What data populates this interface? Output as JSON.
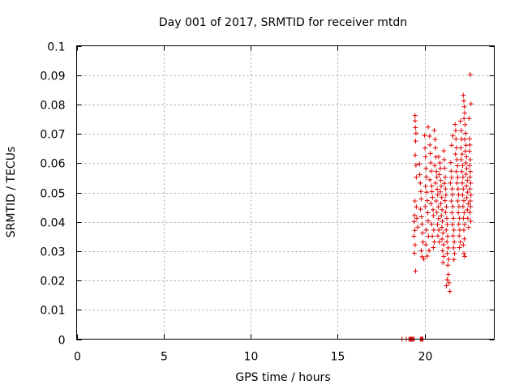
{
  "chart_data": {
    "type": "scatter",
    "title": "Day 001 of 2017, SRMTID for receiver mtdn",
    "xlabel": "GPS time / hours",
    "ylabel": "SRMTID / TECUs",
    "xlim": [
      0,
      24
    ],
    "ylim": [
      0,
      0.1
    ],
    "xticks": [
      0,
      5,
      10,
      15,
      20
    ],
    "xtick_labels": [
      "0",
      "5",
      "10",
      "15",
      "20"
    ],
    "yticks": [
      0,
      0.01,
      0.02,
      0.03,
      0.04,
      0.05,
      0.06,
      0.07,
      0.08,
      0.09,
      0.1
    ],
    "ytick_labels": [
      "0",
      "0.01",
      "0.02",
      "0.03",
      "0.04",
      "0.05",
      "0.06",
      "0.07",
      "0.08",
      "0.09",
      "0.1"
    ],
    "grid": true,
    "marker": "+",
    "color": "#e00000",
    "series": [
      {
        "points": [
          [
            18.7,
            0
          ],
          [
            18.95,
            0
          ],
          [
            19.1,
            0
          ],
          [
            19.15,
            0
          ],
          [
            19.2,
            0
          ],
          [
            19.25,
            0
          ],
          [
            19.3,
            0
          ],
          [
            19.35,
            0
          ],
          [
            19.4,
            0
          ],
          [
            19.75,
            0
          ],
          [
            19.8,
            0
          ],
          [
            19.85,
            0
          ],
          [
            19.9,
            0
          ],
          [
            19.45,
            0.0762
          ],
          [
            19.45,
            0.0744
          ],
          [
            19.47,
            0.0721
          ],
          [
            19.5,
            0.0702
          ],
          [
            19.48,
            0.0675
          ],
          [
            19.46,
            0.0627
          ],
          [
            19.5,
            0.0593
          ],
          [
            19.52,
            0.0552
          ],
          [
            19.44,
            0.0471
          ],
          [
            19.42,
            0.0422
          ],
          [
            19.4,
            0.0401
          ],
          [
            19.43,
            0.0371
          ],
          [
            19.38,
            0.0351
          ],
          [
            19.45,
            0.0321
          ],
          [
            19.41,
            0.0293
          ],
          [
            19.48,
            0.0232
          ],
          [
            19.52,
            0.0451
          ],
          [
            19.55,
            0.0412
          ],
          [
            19.6,
            0.0382
          ],
          [
            19.7,
            0.0597
          ],
          [
            19.72,
            0.0561
          ],
          [
            19.75,
            0.0532
          ],
          [
            19.78,
            0.0503
          ],
          [
            19.8,
            0.0478
          ],
          [
            19.76,
            0.0443
          ],
          [
            19.82,
            0.0417
          ],
          [
            19.85,
            0.0392
          ],
          [
            19.88,
            0.0362
          ],
          [
            19.9,
            0.0331
          ],
          [
            19.8,
            0.0301
          ],
          [
            19.86,
            0.0281
          ],
          [
            19.95,
            0.0273
          ],
          [
            20.0,
            0.0694
          ],
          [
            20.02,
            0.0651
          ],
          [
            20.05,
            0.0622
          ],
          [
            20.08,
            0.0582
          ],
          [
            20.1,
            0.0553
          ],
          [
            20.05,
            0.0521
          ],
          [
            20.12,
            0.0501
          ],
          [
            20.15,
            0.0472
          ],
          [
            20.03,
            0.0452
          ],
          [
            20.18,
            0.0431
          ],
          [
            20.2,
            0.0403
          ],
          [
            20.1,
            0.0372
          ],
          [
            20.22,
            0.0351
          ],
          [
            20.07,
            0.0322
          ],
          [
            20.25,
            0.0302
          ],
          [
            20.15,
            0.0283
          ],
          [
            20.2,
            0.0723
          ],
          [
            20.28,
            0.0692
          ],
          [
            20.3,
            0.0662
          ],
          [
            20.33,
            0.0633
          ],
          [
            20.35,
            0.0601
          ],
          [
            20.38,
            0.0573
          ],
          [
            20.3,
            0.0543
          ],
          [
            20.4,
            0.0522
          ],
          [
            20.42,
            0.0503
          ],
          [
            20.45,
            0.0483
          ],
          [
            20.36,
            0.0462
          ],
          [
            20.48,
            0.0441
          ],
          [
            20.5,
            0.0421
          ],
          [
            20.4,
            0.0392
          ],
          [
            20.52,
            0.0372
          ],
          [
            20.44,
            0.0351
          ],
          [
            20.55,
            0.0331
          ],
          [
            20.5,
            0.0312
          ],
          [
            20.55,
            0.0712
          ],
          [
            20.6,
            0.0681
          ],
          [
            20.62,
            0.0652
          ],
          [
            20.65,
            0.0621
          ],
          [
            20.58,
            0.0592
          ],
          [
            20.68,
            0.0571
          ],
          [
            20.7,
            0.0552
          ],
          [
            20.63,
            0.0532
          ],
          [
            20.72,
            0.0511
          ],
          [
            20.75,
            0.0492
          ],
          [
            20.66,
            0.0471
          ],
          [
            20.78,
            0.0451
          ],
          [
            20.7,
            0.0432
          ],
          [
            20.8,
            0.0411
          ],
          [
            20.74,
            0.0391
          ],
          [
            20.82,
            0.0372
          ],
          [
            20.76,
            0.0352
          ],
          [
            20.85,
            0.0331
          ],
          [
            20.8,
            0.0622
          ],
          [
            20.88,
            0.0601
          ],
          [
            20.9,
            0.0582
          ],
          [
            20.85,
            0.0561
          ],
          [
            20.92,
            0.0541
          ],
          [
            20.95,
            0.0521
          ],
          [
            20.9,
            0.0502
          ],
          [
            20.98,
            0.0483
          ],
          [
            20.93,
            0.0462
          ],
          [
            21.0,
            0.0441
          ],
          [
            20.96,
            0.0421
          ],
          [
            21.02,
            0.0402
          ],
          [
            20.99,
            0.0381
          ],
          [
            21.05,
            0.0362
          ],
          [
            21.0,
            0.0341
          ],
          [
            21.08,
            0.0322
          ],
          [
            21.03,
            0.0301
          ],
          [
            21.1,
            0.0282
          ],
          [
            21.05,
            0.0261
          ],
          [
            21.1,
            0.0642
          ],
          [
            21.12,
            0.0612
          ],
          [
            21.15,
            0.0583
          ],
          [
            21.18,
            0.0552
          ],
          [
            21.13,
            0.0531
          ],
          [
            21.2,
            0.0512
          ],
          [
            21.22,
            0.0491
          ],
          [
            21.17,
            0.0472
          ],
          [
            21.25,
            0.0451
          ],
          [
            21.2,
            0.0432
          ],
          [
            21.27,
            0.0412
          ],
          [
            21.3,
            0.0391
          ],
          [
            21.24,
            0.0372
          ],
          [
            21.32,
            0.0351
          ],
          [
            21.28,
            0.0332
          ],
          [
            21.35,
            0.0311
          ],
          [
            21.3,
            0.0292
          ],
          [
            21.38,
            0.0272
          ],
          [
            21.33,
            0.0252
          ],
          [
            21.36,
            0.0221
          ],
          [
            21.3,
            0.0203
          ],
          [
            21.25,
            0.0182
          ],
          [
            21.4,
            0.0192
          ],
          [
            21.45,
            0.0163
          ],
          [
            21.5,
            0.0602
          ],
          [
            21.52,
            0.0573
          ],
          [
            21.55,
            0.0551
          ],
          [
            21.48,
            0.0532
          ],
          [
            21.58,
            0.0512
          ],
          [
            21.6,
            0.0492
          ],
          [
            21.53,
            0.0471
          ],
          [
            21.62,
            0.0452
          ],
          [
            21.57,
            0.0431
          ],
          [
            21.65,
            0.0412
          ],
          [
            21.6,
            0.0391
          ],
          [
            21.68,
            0.0372
          ],
          [
            21.63,
            0.0352
          ],
          [
            21.7,
            0.0331
          ],
          [
            21.66,
            0.0311
          ],
          [
            21.72,
            0.0292
          ],
          [
            21.68,
            0.0271
          ],
          [
            21.55,
            0.0661
          ],
          [
            21.62,
            0.0693
          ],
          [
            21.75,
            0.0732
          ],
          [
            21.78,
            0.0711
          ],
          [
            21.8,
            0.0682
          ],
          [
            21.83,
            0.0652
          ],
          [
            21.77,
            0.0631
          ],
          [
            21.85,
            0.0612
          ],
          [
            21.88,
            0.0591
          ],
          [
            21.82,
            0.0571
          ],
          [
            21.9,
            0.0551
          ],
          [
            21.86,
            0.0532
          ],
          [
            21.92,
            0.0512
          ],
          [
            21.95,
            0.0492
          ],
          [
            21.9,
            0.0471
          ],
          [
            21.97,
            0.0452
          ],
          [
            21.93,
            0.0431
          ],
          [
            22.0,
            0.0412
          ],
          [
            21.96,
            0.0392
          ],
          [
            22.02,
            0.0372
          ],
          [
            21.98,
            0.0352
          ],
          [
            22.05,
            0.0331
          ],
          [
            22.0,
            0.0312
          ],
          [
            22.05,
            0.0743
          ],
          [
            22.1,
            0.0711
          ],
          [
            22.12,
            0.0682
          ],
          [
            22.08,
            0.0652
          ],
          [
            22.15,
            0.0631
          ],
          [
            22.1,
            0.0612
          ],
          [
            22.18,
            0.0592
          ],
          [
            22.14,
            0.0571
          ],
          [
            22.2,
            0.0552
          ],
          [
            22.16,
            0.0532
          ],
          [
            22.22,
            0.0512
          ],
          [
            22.18,
            0.0491
          ],
          [
            22.25,
            0.0472
          ],
          [
            22.2,
            0.0452
          ],
          [
            22.27,
            0.0431
          ],
          [
            22.23,
            0.0412
          ],
          [
            22.3,
            0.0391
          ],
          [
            22.25,
            0.0372
          ],
          [
            22.28,
            0.0342
          ],
          [
            22.22,
            0.0321
          ],
          [
            22.26,
            0.0292
          ],
          [
            22.3,
            0.0282
          ],
          [
            22.22,
            0.0831
          ],
          [
            22.25,
            0.0812
          ],
          [
            22.28,
            0.0792
          ],
          [
            22.3,
            0.0771
          ],
          [
            22.26,
            0.0752
          ],
          [
            22.32,
            0.0731
          ],
          [
            22.35,
            0.0702
          ],
          [
            22.3,
            0.0681
          ],
          [
            22.38,
            0.0661
          ],
          [
            22.34,
            0.0641
          ],
          [
            22.4,
            0.0622
          ],
          [
            22.36,
            0.0601
          ],
          [
            22.42,
            0.0581
          ],
          [
            22.38,
            0.0562
          ],
          [
            22.45,
            0.0541
          ],
          [
            22.4,
            0.0522
          ],
          [
            22.47,
            0.0501
          ],
          [
            22.42,
            0.0482
          ],
          [
            22.5,
            0.0461
          ],
          [
            22.45,
            0.0441
          ],
          [
            22.48,
            0.0412
          ],
          [
            22.52,
            0.0381
          ],
          [
            22.55,
            0.0752
          ],
          [
            22.58,
            0.0683
          ],
          [
            22.6,
            0.0662
          ],
          [
            22.57,
            0.0641
          ],
          [
            22.62,
            0.0612
          ],
          [
            22.58,
            0.0592
          ],
          [
            22.63,
            0.0571
          ],
          [
            22.6,
            0.0552
          ],
          [
            22.65,
            0.0532
          ],
          [
            22.61,
            0.0512
          ],
          [
            22.66,
            0.0491
          ],
          [
            22.62,
            0.0471
          ],
          [
            22.64,
            0.0452
          ],
          [
            22.6,
            0.0432
          ],
          [
            22.65,
            0.0402
          ],
          [
            22.62,
            0.0902
          ],
          [
            22.66,
            0.0802
          ]
        ]
      }
    ]
  }
}
